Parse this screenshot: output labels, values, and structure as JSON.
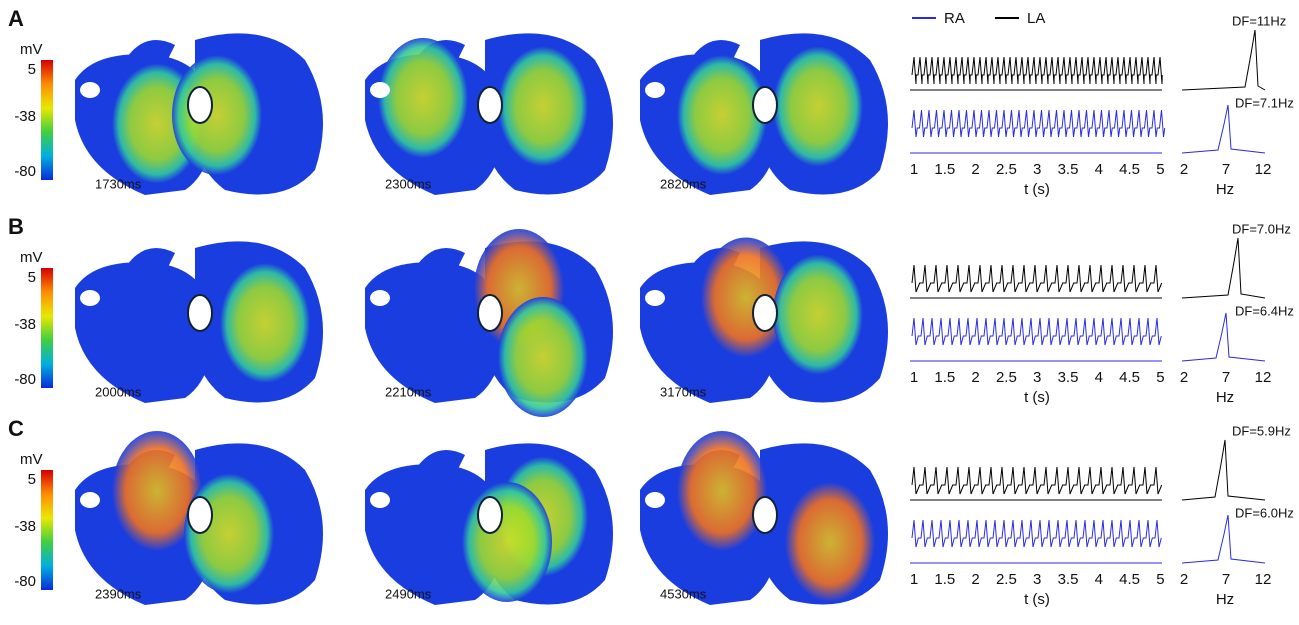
{
  "legend": {
    "items": [
      {
        "name": "RA",
        "color": "#2a2ae6"
      },
      {
        "name": "LA",
        "color": "#000000"
      }
    ]
  },
  "colorbar": {
    "unit": "mV",
    "ticks": [
      "5",
      "-38",
      "-80"
    ]
  },
  "panels": [
    {
      "label": "A",
      "snapshots": [
        "1730ms",
        "2300ms",
        "2820ms"
      ],
      "la_df": "DF=11Hz",
      "ra_df": "DF=7.1Hz"
    },
    {
      "label": "B",
      "snapshots": [
        "2000ms",
        "2210ms",
        "3170ms"
      ],
      "la_df": "DF=7.0Hz",
      "ra_df": "DF=6.4Hz"
    },
    {
      "label": "C",
      "snapshots": [
        "2390ms",
        "2490ms",
        "4530ms"
      ],
      "la_df": "DF=5.9Hz",
      "ra_df": "DF=6.0Hz"
    }
  ],
  "time_axis": {
    "ticks": [
      "1",
      "1.5",
      "2",
      "2.5",
      "3",
      "3.5",
      "4",
      "4.5",
      "5"
    ],
    "label": "t (s)"
  },
  "freq_axis": {
    "ticks": [
      "2",
      "7",
      "12"
    ],
    "label": "Hz"
  }
}
